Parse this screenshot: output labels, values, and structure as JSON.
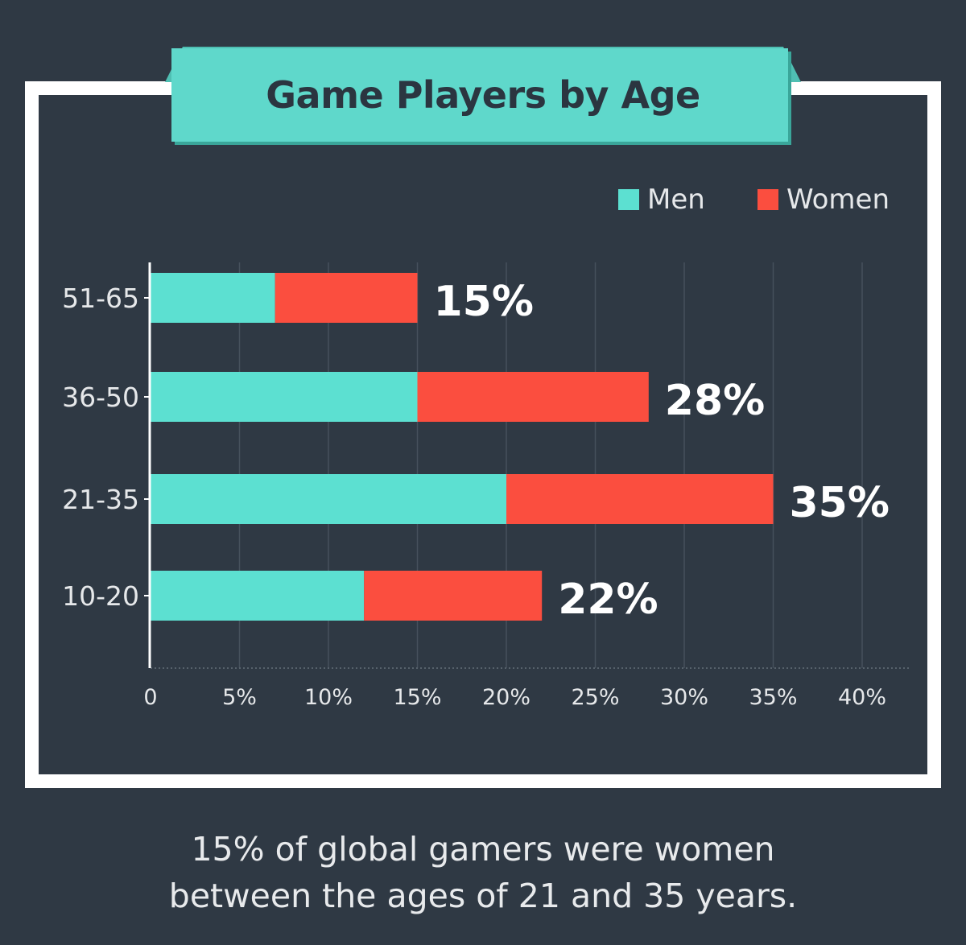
{
  "chart_data": {
    "type": "bar",
    "orientation": "horizontal",
    "stacked": true,
    "title": "Game Players by Age",
    "categories": [
      "51-65",
      "36-50",
      "21-35",
      "10-20"
    ],
    "series": [
      {
        "name": "Men",
        "color": "#5ce0d1",
        "values": [
          7,
          15,
          20,
          12
        ]
      },
      {
        "name": "Women",
        "color": "#fb4e3f",
        "values": [
          8,
          13,
          15,
          10
        ]
      }
    ],
    "total_labels": [
      "15%",
      "28%",
      "35%",
      "22%"
    ],
    "xticks": [
      "0",
      "5%",
      "10%",
      "15%",
      "20%",
      "25%",
      "30%",
      "35%",
      "40%"
    ],
    "xlim": [
      0,
      40
    ],
    "grid": true,
    "legend": "top-right"
  },
  "caption": {
    "line1": "15% of global gamers were women",
    "line2": "between the ages of 21 and 35 years."
  },
  "colors": {
    "background": "#2f3944",
    "frame": "#ffffff",
    "banner": "#5fd8cb",
    "banner_shadow": "#3aa69a"
  }
}
